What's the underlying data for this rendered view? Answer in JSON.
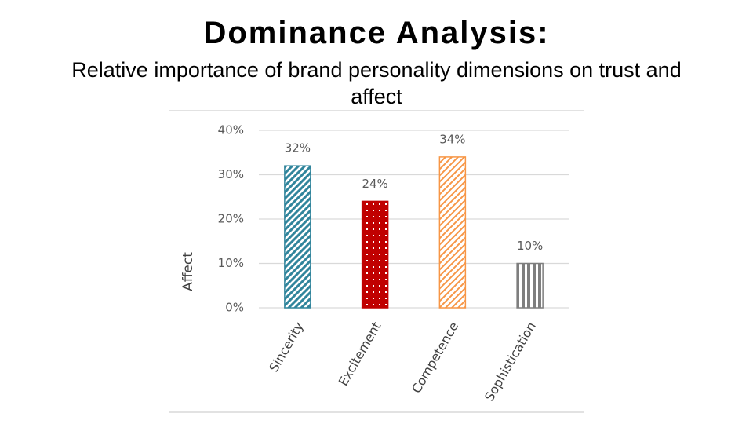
{
  "chart_data": {
    "type": "bar",
    "title": "Dominance Analysis:",
    "subtitle": "Relative importance of brand personality dimensions on trust and affect",
    "ylabel": "Affect",
    "categories": [
      "Sincerity",
      "Excitement",
      "Competence",
      "Sophistication"
    ],
    "values": [
      32,
      24,
      34,
      10
    ],
    "value_labels": [
      "32%",
      "24%",
      "34%",
      "10%"
    ],
    "colors": [
      "#31859c",
      "#c00000",
      "#f79646",
      "#7f7f7f"
    ],
    "ylim": [
      0,
      40
    ],
    "yticks": [
      {
        "value": 0,
        "label": "0%"
      },
      {
        "value": 10,
        "label": "10%"
      },
      {
        "value": 20,
        "label": "20%"
      },
      {
        "value": 30,
        "label": "30%"
      },
      {
        "value": 40,
        "label": "40%"
      }
    ],
    "grid": true
  }
}
